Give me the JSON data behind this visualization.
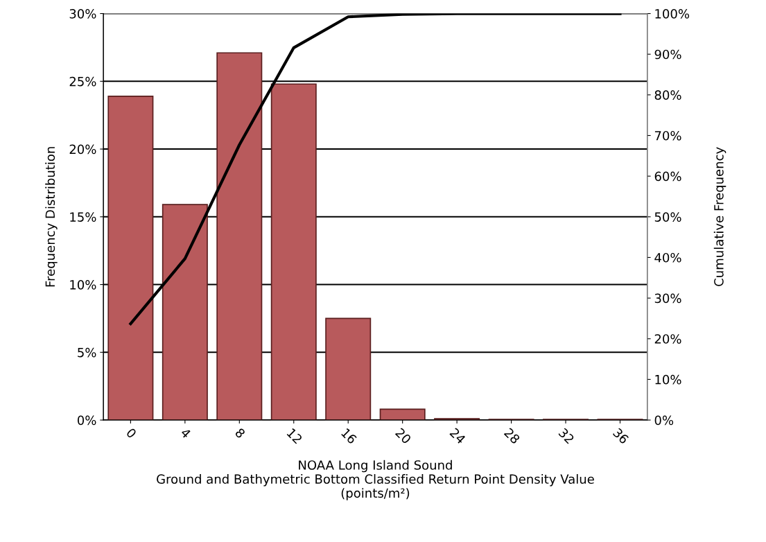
{
  "chart_data": {
    "type": "bar",
    "xlabel": "NOAA Long Island Sound\nGround and Bathymetric Bottom Classified Return Point Density Value\n(points/m²)",
    "ylabel": "Frequency Distribution",
    "y2label": "Cumulative Frequency",
    "categories": [
      "0",
      "4",
      "8",
      "12",
      "16",
      "20",
      "24",
      "28",
      "32",
      "36"
    ],
    "series": [
      {
        "color": "#b85a5c",
        "values": [
          23.9,
          15.9,
          27.1,
          24.8,
          7.5,
          0.8,
          0.1,
          0.05,
          0.05,
          0.05
        ]
      },
      {
        "type": "line",
        "axis": "y2",
        "color": "#000000",
        "values": [
          23.7,
          39.7,
          67.7,
          91.6,
          99.2,
          99.8,
          100,
          100,
          100,
          100
        ]
      }
    ],
    "ylim": [
      0,
      30
    ],
    "yticks": [
      {
        "value": 0,
        "label": "0%"
      },
      {
        "value": 5,
        "label": "5%"
      },
      {
        "value": 10,
        "label": "10%"
      },
      {
        "value": 15,
        "label": "15%"
      },
      {
        "value": 20,
        "label": "20%"
      },
      {
        "value": 25,
        "label": "25%"
      },
      {
        "value": 30,
        "label": "30%"
      }
    ],
    "y2lim": [
      0,
      100
    ],
    "y2ticks": [
      {
        "value": 0,
        "label": "0%"
      },
      {
        "value": 10,
        "label": "10%"
      },
      {
        "value": 20,
        "label": "20%"
      },
      {
        "value": 30,
        "label": "30%"
      },
      {
        "value": 40,
        "label": "40%"
      },
      {
        "value": 50,
        "label": "50%"
      },
      {
        "value": 60,
        "label": "60%"
      },
      {
        "value": 70,
        "label": "70%"
      },
      {
        "value": 80,
        "label": "80%"
      },
      {
        "value": 90,
        "label": "90%"
      },
      {
        "value": 100,
        "label": "100%"
      }
    ],
    "grid": "y",
    "marker": "none",
    "line_style": "solid"
  }
}
